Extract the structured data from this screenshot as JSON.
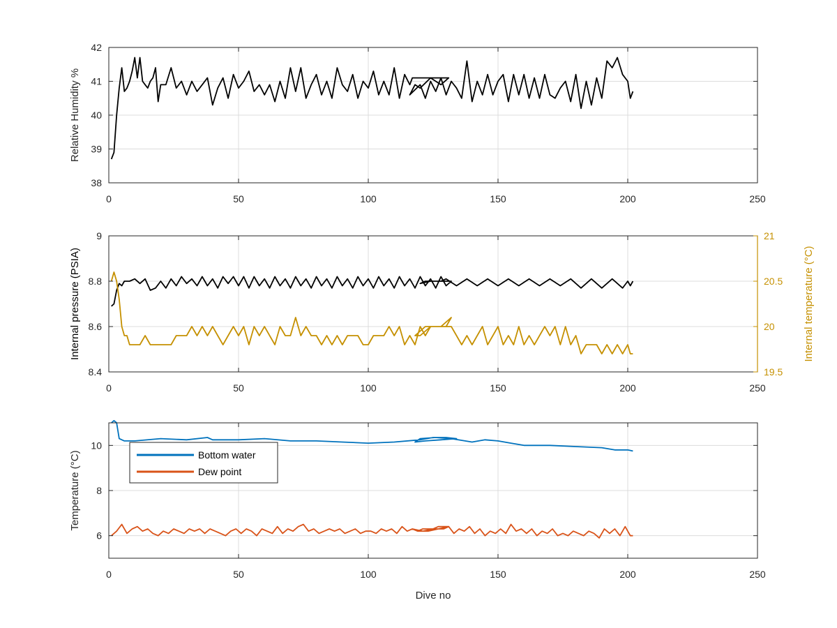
{
  "chart_data": [
    {
      "type": "line",
      "xlabel": "",
      "ylabel": "Relative Humidity %",
      "xlim": [
        0,
        250
      ],
      "ylim": [
        38,
        42
      ],
      "xticks": [
        "0",
        "50",
        "100",
        "150",
        "200",
        "250"
      ],
      "yticks": [
        "38",
        "39",
        "40",
        "41",
        "42"
      ],
      "grid": true,
      "series": [
        {
          "color": "#000000",
          "x": [
            1,
            2,
            3,
            4,
            5,
            6,
            7,
            8,
            9,
            10,
            11,
            12,
            13,
            14,
            15,
            16,
            17,
            18,
            19,
            20,
            22,
            24,
            26,
            28,
            30,
            32,
            34,
            36,
            38,
            40,
            42,
            44,
            46,
            48,
            50,
            52,
            54,
            56,
            58,
            60,
            62,
            64,
            66,
            68,
            70,
            72,
            74,
            76,
            78,
            80,
            82,
            84,
            86,
            88,
            90,
            92,
            94,
            96,
            98,
            100,
            102,
            104,
            106,
            108,
            110,
            112,
            114,
            116,
            117,
            122,
            126,
            131,
            128,
            124,
            120,
            118,
            116,
            120,
            122,
            124,
            126,
            128,
            130,
            132,
            134,
            136,
            138,
            140,
            142,
            144,
            146,
            148,
            150,
            152,
            154,
            156,
            158,
            160,
            162,
            164,
            166,
            168,
            170,
            172,
            174,
            176,
            178,
            180,
            182,
            184,
            186,
            188,
            190,
            192,
            194,
            196,
            198,
            200,
            201,
            202
          ],
          "y": [
            38.7,
            38.9,
            40.0,
            40.8,
            41.4,
            40.7,
            40.8,
            41.0,
            41.3,
            41.7,
            41.1,
            41.7,
            41.0,
            40.9,
            40.8,
            41.0,
            41.1,
            41.4,
            40.4,
            40.9,
            40.9,
            41.4,
            40.8,
            41.0,
            40.6,
            41.0,
            40.7,
            40.9,
            41.1,
            40.3,
            40.8,
            41.1,
            40.5,
            41.2,
            40.8,
            41.0,
            41.3,
            40.7,
            40.9,
            40.6,
            40.9,
            40.4,
            41.0,
            40.5,
            41.4,
            40.7,
            41.4,
            40.5,
            40.9,
            41.2,
            40.6,
            41.0,
            40.5,
            41.4,
            40.9,
            40.7,
            41.2,
            40.5,
            41.0,
            40.8,
            41.3,
            40.6,
            41.0,
            40.6,
            41.4,
            40.5,
            41.2,
            40.9,
            41.1,
            41.1,
            41.1,
            41.1,
            40.9,
            41.1,
            40.8,
            40.9,
            40.6,
            40.9,
            40.5,
            41.0,
            40.7,
            41.1,
            40.6,
            41.0,
            40.8,
            40.5,
            41.6,
            40.4,
            41.0,
            40.6,
            41.2,
            40.6,
            41.0,
            41.2,
            40.4,
            41.2,
            40.6,
            41.2,
            40.5,
            41.1,
            40.5,
            41.2,
            40.6,
            40.5,
            40.8,
            41.0,
            40.4,
            41.2,
            40.2,
            41.0,
            40.3,
            41.1,
            40.5,
            41.6,
            41.4,
            41.7,
            41.2,
            41.0,
            40.5,
            40.7
          ]
        }
      ]
    },
    {
      "type": "line",
      "xlabel": "",
      "ylabel": "Internal pressure (PSIA)",
      "y2label": "Internal temperature (°C)",
      "xlim": [
        0,
        250
      ],
      "ylim": [
        8.4,
        9.0
      ],
      "y2lim": [
        19.5,
        21.0
      ],
      "xticks": [
        "0",
        "50",
        "100",
        "150",
        "200",
        "250"
      ],
      "yticks": [
        "8.4",
        "8.6",
        "8.8",
        "9"
      ],
      "y2ticks": [
        "19.5",
        "20",
        "20.5",
        "21"
      ],
      "grid": true,
      "series": [
        {
          "axis": "left",
          "color": "#000000",
          "x": [
            1,
            2,
            3,
            4,
            5,
            6,
            8,
            10,
            12,
            14,
            16,
            18,
            20,
            22,
            24,
            26,
            28,
            30,
            32,
            34,
            36,
            38,
            40,
            42,
            44,
            46,
            48,
            50,
            52,
            54,
            56,
            58,
            60,
            62,
            64,
            66,
            68,
            70,
            72,
            74,
            76,
            78,
            80,
            82,
            84,
            86,
            88,
            90,
            92,
            94,
            96,
            98,
            100,
            102,
            104,
            106,
            108,
            110,
            112,
            114,
            116,
            118,
            120,
            122,
            124,
            126,
            128,
            130,
            132,
            126,
            122,
            120,
            124,
            128,
            130,
            134,
            138,
            142,
            146,
            150,
            154,
            158,
            162,
            166,
            170,
            174,
            178,
            182,
            186,
            190,
            194,
            198,
            200,
            201,
            202
          ],
          "y": [
            8.69,
            8.7,
            8.76,
            8.79,
            8.78,
            8.8,
            8.8,
            8.81,
            8.79,
            8.81,
            8.76,
            8.77,
            8.8,
            8.77,
            8.81,
            8.78,
            8.82,
            8.79,
            8.81,
            8.78,
            8.82,
            8.78,
            8.81,
            8.77,
            8.82,
            8.79,
            8.82,
            8.78,
            8.82,
            8.77,
            8.82,
            8.78,
            8.81,
            8.77,
            8.82,
            8.78,
            8.81,
            8.77,
            8.82,
            8.78,
            8.81,
            8.77,
            8.82,
            8.78,
            8.81,
            8.77,
            8.82,
            8.78,
            8.81,
            8.77,
            8.82,
            8.78,
            8.81,
            8.77,
            8.82,
            8.78,
            8.81,
            8.77,
            8.82,
            8.78,
            8.81,
            8.77,
            8.82,
            8.78,
            8.81,
            8.77,
            8.82,
            8.78,
            8.8,
            8.8,
            8.8,
            8.79,
            8.8,
            8.8,
            8.81,
            8.78,
            8.81,
            8.78,
            8.81,
            8.78,
            8.81,
            8.78,
            8.81,
            8.78,
            8.81,
            8.78,
            8.81,
            8.77,
            8.81,
            8.77,
            8.81,
            8.77,
            8.8,
            8.78,
            8.8
          ]
        },
        {
          "axis": "right",
          "color": "#c59000",
          "x": [
            1,
            2,
            3,
            4,
            5,
            6,
            7,
            8,
            10,
            12,
            14,
            16,
            18,
            20,
            22,
            24,
            26,
            28,
            30,
            32,
            34,
            36,
            38,
            40,
            42,
            44,
            46,
            48,
            50,
            52,
            54,
            56,
            58,
            60,
            62,
            64,
            66,
            68,
            70,
            72,
            74,
            76,
            78,
            80,
            82,
            84,
            86,
            88,
            90,
            92,
            94,
            96,
            98,
            100,
            102,
            104,
            106,
            108,
            110,
            112,
            114,
            116,
            118,
            120,
            122,
            124,
            126,
            128,
            130,
            132,
            128,
            124,
            120,
            118,
            122,
            126,
            130,
            132,
            134,
            136,
            138,
            140,
            142,
            144,
            146,
            148,
            150,
            152,
            154,
            156,
            158,
            160,
            162,
            164,
            166,
            168,
            170,
            172,
            174,
            176,
            178,
            180,
            182,
            184,
            186,
            188,
            190,
            192,
            194,
            196,
            198,
            200,
            201,
            202
          ],
          "y": [
            20.5,
            20.6,
            20.5,
            20.3,
            20.0,
            19.9,
            19.9,
            19.8,
            19.8,
            19.8,
            19.9,
            19.8,
            19.8,
            19.8,
            19.8,
            19.8,
            19.9,
            19.9,
            19.9,
            20.0,
            19.9,
            20.0,
            19.9,
            20.0,
            19.9,
            19.8,
            19.9,
            20.0,
            19.9,
            20.0,
            19.8,
            20.0,
            19.9,
            20.0,
            19.9,
            19.8,
            20.0,
            19.9,
            19.9,
            20.1,
            19.9,
            20.0,
            19.9,
            19.9,
            19.8,
            19.9,
            19.8,
            19.9,
            19.8,
            19.9,
            19.9,
            19.9,
            19.8,
            19.8,
            19.9,
            19.9,
            19.9,
            20.0,
            19.9,
            20.0,
            19.8,
            19.9,
            19.8,
            20.0,
            19.9,
            20.0,
            20.0,
            20.0,
            20.0,
            20.1,
            20.0,
            20.0,
            19.9,
            19.9,
            20.0,
            20.0,
            20.0,
            20.0,
            19.9,
            19.8,
            19.9,
            19.8,
            19.9,
            20.0,
            19.8,
            19.9,
            20.0,
            19.8,
            19.9,
            19.8,
            20.0,
            19.8,
            19.9,
            19.8,
            19.9,
            20.0,
            19.9,
            20.0,
            19.8,
            20.0,
            19.8,
            19.9,
            19.7,
            19.8,
            19.8,
            19.8,
            19.7,
            19.8,
            19.7,
            19.8,
            19.7,
            19.8,
            19.7,
            19.7
          ]
        }
      ]
    },
    {
      "type": "line",
      "xlabel": "Dive no",
      "ylabel": "Temperature (°C)",
      "xlim": [
        0,
        250
      ],
      "ylim": [
        5,
        11
      ],
      "xticks": [
        "0",
        "50",
        "100",
        "150",
        "200",
        "250"
      ],
      "yticks": [
        "6",
        "8",
        "10"
      ],
      "grid": true,
      "legend_position": "top-left",
      "series": [
        {
          "name": "Bottom water",
          "color": "#0072bd",
          "x": [
            1,
            2,
            3,
            4,
            6,
            10,
            20,
            30,
            38,
            40,
            50,
            60,
            70,
            80,
            90,
            100,
            110,
            120,
            125,
            130,
            134,
            128,
            122,
            118,
            120,
            126,
            132,
            140,
            145,
            150,
            155,
            160,
            165,
            170,
            180,
            190,
            195,
            200,
            202
          ],
          "y": [
            11.0,
            11.1,
            11.0,
            10.3,
            10.2,
            10.2,
            10.3,
            10.25,
            10.35,
            10.25,
            10.25,
            10.3,
            10.2,
            10.2,
            10.15,
            10.1,
            10.15,
            10.25,
            10.35,
            10.35,
            10.3,
            10.25,
            10.2,
            10.15,
            10.3,
            10.35,
            10.3,
            10.15,
            10.25,
            10.2,
            10.1,
            10.0,
            10.0,
            10.0,
            9.95,
            9.9,
            9.8,
            9.8,
            9.75
          ]
        },
        {
          "name": "Dew point",
          "color": "#d95319",
          "x": [
            1,
            3,
            5,
            7,
            9,
            11,
            13,
            15,
            17,
            19,
            21,
            23,
            25,
            27,
            29,
            31,
            33,
            35,
            37,
            39,
            41,
            43,
            45,
            47,
            49,
            51,
            53,
            55,
            57,
            59,
            61,
            63,
            65,
            67,
            69,
            71,
            73,
            75,
            77,
            79,
            81,
            83,
            85,
            87,
            89,
            91,
            93,
            95,
            97,
            99,
            101,
            103,
            105,
            107,
            109,
            111,
            113,
            115,
            117,
            119,
            121,
            123,
            125,
            127,
            129,
            131,
            127,
            123,
            119,
            117,
            121,
            125,
            129,
            131,
            133,
            135,
            137,
            139,
            141,
            143,
            145,
            147,
            149,
            151,
            153,
            155,
            157,
            159,
            161,
            163,
            165,
            167,
            169,
            171,
            173,
            175,
            177,
            179,
            181,
            183,
            185,
            187,
            189,
            191,
            193,
            195,
            197,
            199,
            201,
            202
          ],
          "y": [
            6.0,
            6.2,
            6.5,
            6.1,
            6.3,
            6.4,
            6.2,
            6.3,
            6.1,
            6.0,
            6.2,
            6.1,
            6.3,
            6.2,
            6.1,
            6.3,
            6.2,
            6.3,
            6.1,
            6.3,
            6.2,
            6.1,
            6.0,
            6.2,
            6.3,
            6.1,
            6.3,
            6.2,
            6.0,
            6.3,
            6.2,
            6.1,
            6.4,
            6.1,
            6.3,
            6.2,
            6.4,
            6.5,
            6.2,
            6.3,
            6.1,
            6.2,
            6.3,
            6.2,
            6.3,
            6.1,
            6.2,
            6.3,
            6.1,
            6.2,
            6.2,
            6.1,
            6.3,
            6.2,
            6.3,
            6.1,
            6.4,
            6.2,
            6.3,
            6.2,
            6.3,
            6.3,
            6.3,
            6.4,
            6.4,
            6.4,
            6.3,
            6.2,
            6.2,
            6.3,
            6.2,
            6.3,
            6.3,
            6.4,
            6.1,
            6.3,
            6.2,
            6.4,
            6.1,
            6.3,
            6.0,
            6.2,
            6.1,
            6.3,
            6.1,
            6.5,
            6.2,
            6.3,
            6.1,
            6.3,
            6.0,
            6.2,
            6.1,
            6.3,
            6.0,
            6.1,
            6.0,
            6.2,
            6.1,
            6.0,
            6.2,
            6.1,
            5.9,
            6.3,
            6.1,
            6.3,
            6.0,
            6.4,
            6.0,
            6.0
          ]
        }
      ]
    }
  ]
}
